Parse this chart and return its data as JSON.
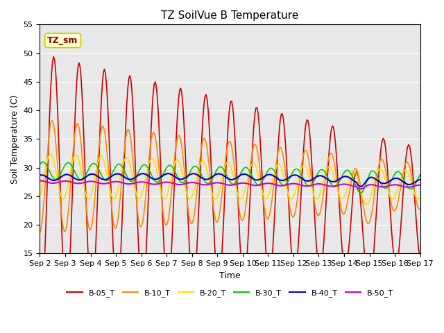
{
  "title": "TZ SoilVue B Temperature",
  "xlabel": "Time",
  "ylabel": "Soil Temperature (C)",
  "ylim": [
    15,
    55
  ],
  "xlim_days": [
    2,
    17
  ],
  "legend_label": "TZ_sm",
  "background_color": "#e8e8e8",
  "series_colors": {
    "B-05_T": "#cc0000",
    "B-10_T": "#ff8800",
    "B-20_T": "#ffdd00",
    "B-30_T": "#00cc00",
    "B-40_T": "#0000cc",
    "B-50_T": "#cc00cc"
  },
  "xtick_labels": [
    "Sep 2",
    "Sep 3",
    "Sep 4",
    "Sep 5",
    "Sep 6",
    "Sep 7",
    "Sep 8",
    "Sep 9",
    "Sep 10",
    "Sep 11",
    "Sep 12",
    "Sep 13",
    "Sep 14",
    "Sep 15",
    "Sep 16",
    "Sep 17"
  ],
  "ytick_vals": [
    15,
    20,
    25,
    30,
    35,
    40,
    45,
    50,
    55
  ],
  "legend_box_color": "#ffffcc",
  "legend_box_edge": "#cccc00",
  "legend_text_color": "#880000"
}
